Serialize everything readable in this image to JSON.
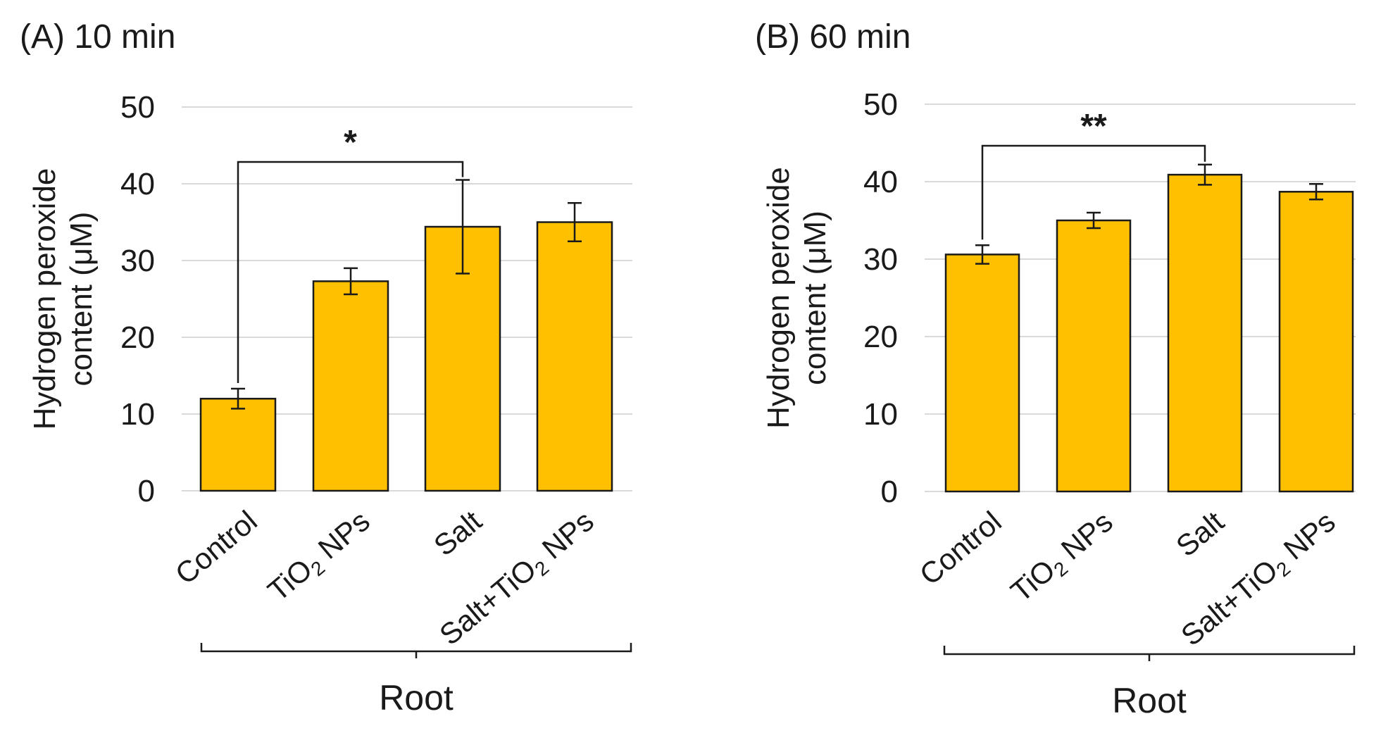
{
  "chart_data": [
    {
      "type": "bar",
      "title": "(A) 10 min",
      "ylabel_lines": [
        "Hydrogen peroxide",
        "content (μM)"
      ],
      "ylim": [
        0,
        50
      ],
      "yticks": [
        0,
        10,
        20,
        30,
        40,
        50
      ],
      "grid": true,
      "categories": [
        {
          "main": "Control",
          "sub": "",
          "tail": ""
        },
        {
          "main": "TiO",
          "sub": "2",
          "tail": " NPs"
        },
        {
          "main": "Salt",
          "sub": "",
          "tail": ""
        },
        {
          "main": "Salt+TiO",
          "sub": "2",
          "tail": " NPs"
        }
      ],
      "values": [
        12,
        27.3,
        34.4,
        35
      ],
      "errors": [
        1.3,
        1.7,
        6.1,
        2.5
      ],
      "bar_color": "#ffc000",
      "group_label": "Root",
      "significance": {
        "from": 0,
        "to": 2,
        "label": "*"
      }
    },
    {
      "type": "bar",
      "title": "(B) 60 min",
      "ylabel_lines": [
        "Hydrogen peroxide",
        "content (μM)"
      ],
      "ylim": [
        0,
        50
      ],
      "yticks": [
        0,
        10,
        20,
        30,
        40,
        50
      ],
      "grid": true,
      "categories": [
        {
          "main": "Control",
          "sub": "",
          "tail": ""
        },
        {
          "main": "TiO",
          "sub": "2",
          "tail": " NPs"
        },
        {
          "main": "Salt",
          "sub": "",
          "tail": ""
        },
        {
          "main": "Salt+TiO",
          "sub": "2",
          "tail": " NPs"
        }
      ],
      "values": [
        30.6,
        35,
        40.9,
        38.7
      ],
      "errors": [
        1.2,
        1.0,
        1.3,
        1.0
      ],
      "bar_color": "#ffc000",
      "group_label": "Root",
      "significance": {
        "from": 0,
        "to": 2,
        "label": "**"
      }
    }
  ]
}
